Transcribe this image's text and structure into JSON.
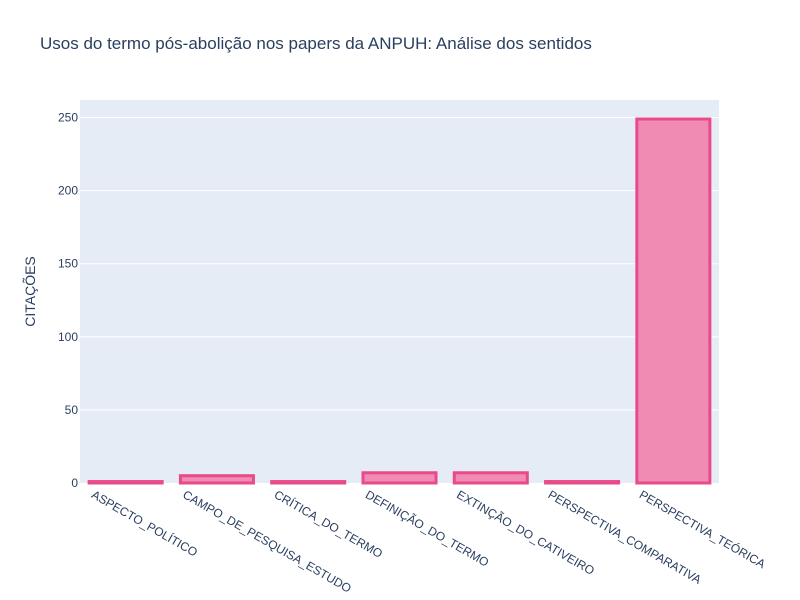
{
  "chart_data": {
    "type": "bar",
    "title": "Usos do termo pós-abolição nos papers da ANPUH: Análise dos sentidos",
    "xlabel": "",
    "ylabel": "CITAÇÕES",
    "categories": [
      "ASPECTO_POLÍTICO",
      "CAMPO_DE_PESQUISA_ESTUDO",
      "CRÍTICA_DO_TERMO",
      "DEFINIÇÃO_DO_TERMO",
      "EXTINÇÃO_DO_CATIVEIRO",
      "PERSPECTIVA_COMPARATIVA",
      "PERSPECTIVA_TEÓRICA"
    ],
    "values": [
      1,
      5,
      1,
      7,
      7,
      1,
      249
    ],
    "ylim": [
      0,
      262
    ],
    "yticks": [
      0,
      50,
      100,
      150,
      200,
      250
    ],
    "grid": true,
    "colors": {
      "bar_fill": "#f08cb4",
      "bar_stroke": "#e84a8a",
      "plot_bg": "#e5ecf6",
      "grid": "#ffffff",
      "text": "#2a3f5f"
    }
  }
}
